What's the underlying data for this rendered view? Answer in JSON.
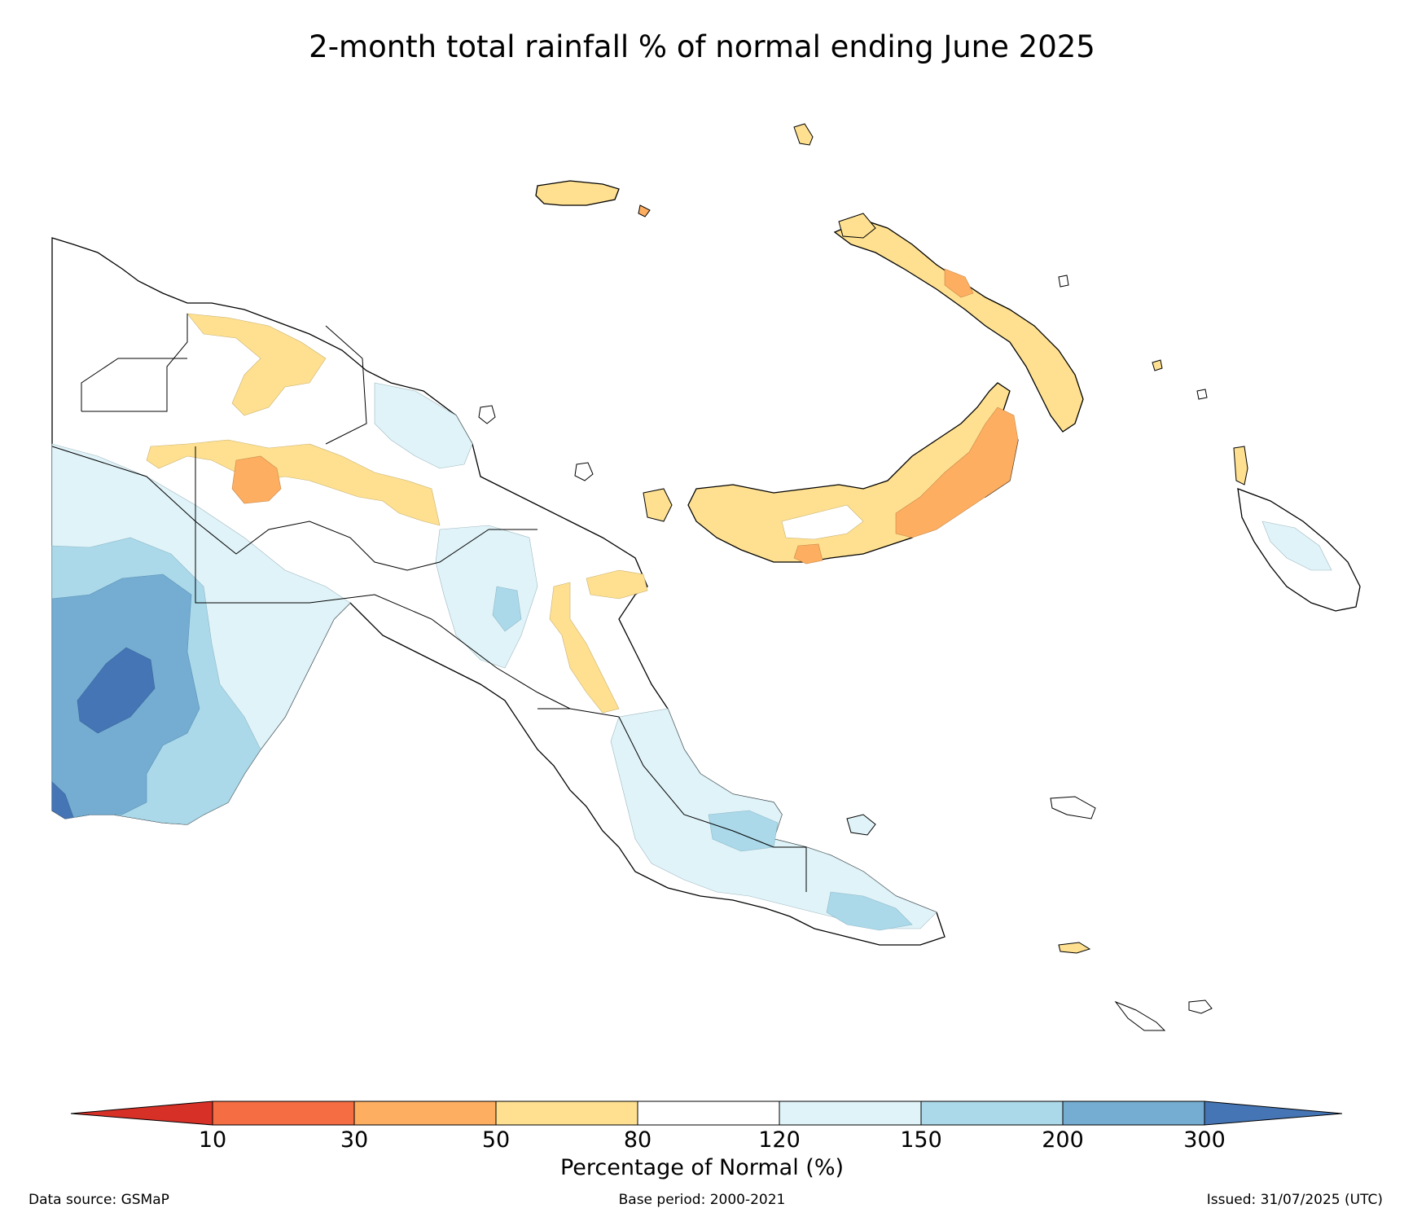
{
  "title": "2-month total rainfall % of normal ending June 2025",
  "legend": {
    "label": "Percentage of Normal (%)",
    "ticks": [
      "10",
      "30",
      "50",
      "80",
      "120",
      "150",
      "200",
      "300"
    ],
    "bins": [
      {
        "range": "<10",
        "color": "#d73027"
      },
      {
        "range": "10-30",
        "color": "#f46d43"
      },
      {
        "range": "30-50",
        "color": "#fdae61"
      },
      {
        "range": "50-80",
        "color": "#fee090"
      },
      {
        "range": "80-120",
        "color": "#ffffff"
      },
      {
        "range": "120-150",
        "color": "#e0f3f8"
      },
      {
        "range": "150-200",
        "color": "#abd9e9"
      },
      {
        "range": "200-300",
        "color": "#74add1"
      },
      {
        "range": ">300",
        "color": "#4575b4"
      }
    ]
  },
  "footer": {
    "source": "Data source: GSMaP",
    "base_period": "Base period: 2000-2021",
    "issued": "Issued: 31/07/2025 (UTC)"
  }
}
